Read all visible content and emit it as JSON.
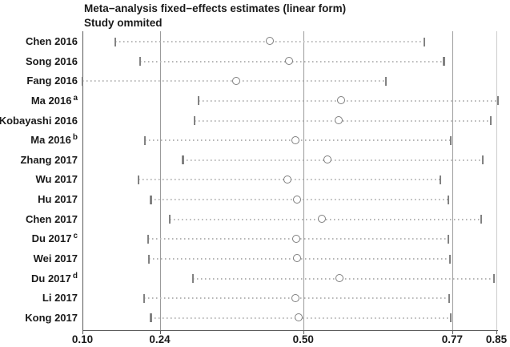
{
  "header": {
    "title": "Meta−analysis fixed−effects estimates (linear form)",
    "subtitle": "Study ommited"
  },
  "chart_data": {
    "type": "scatter",
    "variant": "leave-one-out-sensitivity-forest-plot",
    "title": "Meta−analysis fixed−effects estimates (linear form)",
    "subtitle": "Study ommited",
    "xlabel": "",
    "ylabel": "",
    "xlim": [
      0.1,
      0.85
    ],
    "x_ticks": [
      0.1,
      0.24,
      0.5,
      0.77,
      0.85
    ],
    "x_tick_labels": [
      "0.10",
      "0.24",
      "0.50",
      "0.77",
      "0.85"
    ],
    "gridlines_x": [
      0.24,
      0.5,
      0.77
    ],
    "grid": "vertical-reference-lines",
    "legend_position": "none",
    "marker": "open-circle",
    "studies": [
      {
        "label": "Chen 2016",
        "sup": "",
        "estimate": 0.44,
        "ci_lower": 0.16,
        "ci_upper": 0.72
      },
      {
        "label": "Song 2016",
        "sup": "",
        "estimate": 0.475,
        "ci_lower": 0.205,
        "ci_upper": 0.755
      },
      {
        "label": "Fang 2016",
        "sup": "",
        "estimate": 0.38,
        "ci_lower": 0.1,
        "ci_upper": 0.65
      },
      {
        "label": "Ma 2016",
        "sup": "a",
        "estimate": 0.57,
        "ci_lower": 0.31,
        "ci_upper": 0.853
      },
      {
        "label": "Kobayashi 2016",
        "sup": "",
        "estimate": 0.565,
        "ci_lower": 0.303,
        "ci_upper": 0.84
      },
      {
        "label": "Ma 2016",
        "sup": "b",
        "estimate": 0.487,
        "ci_lower": 0.213,
        "ci_upper": 0.767
      },
      {
        "label": "Zhang 2017",
        "sup": "",
        "estimate": 0.545,
        "ci_lower": 0.282,
        "ci_upper": 0.825
      },
      {
        "label": "Wu 2017",
        "sup": "",
        "estimate": 0.472,
        "ci_lower": 0.202,
        "ci_upper": 0.748
      },
      {
        "label": "Hu 2017",
        "sup": "",
        "estimate": 0.49,
        "ci_lower": 0.224,
        "ci_upper": 0.763
      },
      {
        "label": "Chen 2017",
        "sup": "",
        "estimate": 0.535,
        "ci_lower": 0.258,
        "ci_upper": 0.822
      },
      {
        "label": "Du 2017",
        "sup": "c",
        "estimate": 0.488,
        "ci_lower": 0.219,
        "ci_upper": 0.763
      },
      {
        "label": "Wei 2017",
        "sup": "",
        "estimate": 0.489,
        "ci_lower": 0.22,
        "ci_upper": 0.766
      },
      {
        "label": "Du 2017",
        "sup": "d",
        "estimate": 0.567,
        "ci_lower": 0.3,
        "ci_upper": 0.846
      },
      {
        "label": "Li 2017",
        "sup": "",
        "estimate": 0.487,
        "ci_lower": 0.212,
        "ci_upper": 0.765
      },
      {
        "label": "Kong 2017",
        "sup": "",
        "estimate": 0.492,
        "ci_lower": 0.224,
        "ci_upper": 0.767
      }
    ],
    "colors": {
      "marker_stroke": "#7f7f7f",
      "ci_tick": "#828282",
      "dotted_line": "#b5b5b5",
      "gridline": "#9b9b9b",
      "axis": "#5a5a5a",
      "text": "#1a1a1a",
      "background": "#ffffff"
    }
  }
}
